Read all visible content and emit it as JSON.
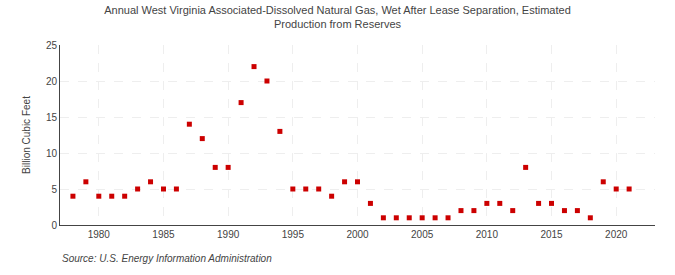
{
  "chart_data": {
    "type": "scatter",
    "title": "Annual West Virginia Associated-Dissolved Natural Gas, Wet After Lease Separation, Estimated\nProduction from Reserves",
    "ylabel": "Billion Cubic Feet",
    "annotations": [
      "Source: U.S. Energy Information Administration"
    ],
    "x": [
      1978,
      1979,
      1980,
      1981,
      1982,
      1983,
      1984,
      1985,
      1986,
      1987,
      1988,
      1989,
      1990,
      1991,
      1992,
      1993,
      1994,
      1995,
      1996,
      1997,
      1998,
      1999,
      2000,
      2001,
      2002,
      2003,
      2004,
      2005,
      2006,
      2007,
      2008,
      2009,
      2010,
      2011,
      2012,
      2013,
      2014,
      2015,
      2016,
      2017,
      2018,
      2019,
      2020,
      2021
    ],
    "values": [
      4.0,
      6.0,
      4.0,
      4.0,
      4.0,
      5.0,
      6.0,
      5.0,
      5.0,
      14.0,
      12.0,
      8.0,
      8.0,
      17.0,
      22.0,
      20.0,
      13.0,
      5.0,
      5.0,
      5.0,
      4.0,
      6.0,
      6.0,
      3.0,
      1.0,
      1.0,
      1.0,
      1.0,
      1.0,
      1.0,
      2.0,
      2.0,
      3.0,
      3.0,
      2.0,
      8.0,
      3.0,
      3.0,
      2.0,
      2.0,
      1.0,
      6.0,
      5.0,
      5.0
    ],
    "color": "#cc0000",
    "marker": "square",
    "xlim": [
      1977,
      2023
    ],
    "ylim": [
      0,
      25
    ],
    "xticks": [
      1980,
      1985,
      1990,
      1995,
      2000,
      2005,
      2010,
      2015,
      2020
    ],
    "yticks": [
      0,
      5,
      10,
      15,
      20,
      25
    ],
    "grid": true
  }
}
